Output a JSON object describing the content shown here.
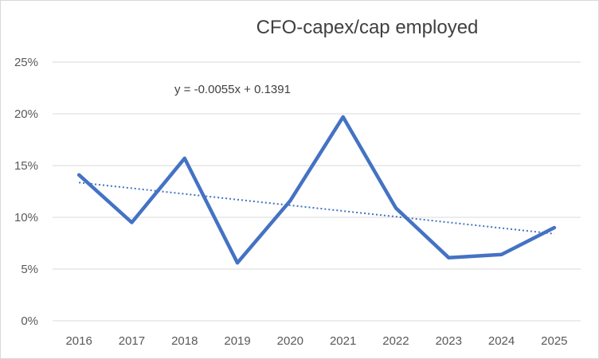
{
  "chart_data": {
    "type": "line",
    "title": "CFO-capex/cap employed",
    "xlabel": "",
    "ylabel": "",
    "categories": [
      "2016",
      "2017",
      "2018",
      "2019",
      "2020",
      "2021",
      "2022",
      "2023",
      "2024",
      "2025"
    ],
    "series": [
      {
        "values": [
          0.141,
          0.095,
          0.157,
          0.056,
          0.116,
          0.197,
          0.109,
          0.061,
          0.064,
          0.09
        ],
        "color": "#4472c4",
        "style": "solid"
      }
    ],
    "trendline": {
      "type": "linear",
      "equation": "y = -0.0055x + 0.1391",
      "slope": -0.0055,
      "intercept": 0.1391,
      "color": "#4472c4",
      "style": "dotted"
    },
    "yticks": [
      "0%",
      "5%",
      "10%",
      "15%",
      "20%",
      "25%"
    ],
    "ylim": [
      0,
      0.25
    ],
    "grid": true,
    "legend": "none"
  }
}
